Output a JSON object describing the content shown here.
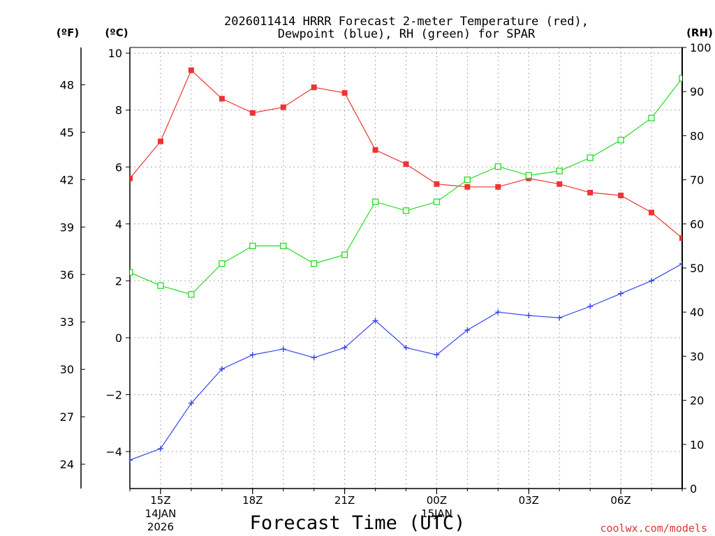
{
  "chart_data": {
    "type": "line",
    "title_line1": "2026011414 HRRR Forecast 2-meter Temperature (red),",
    "title_line2": "Dewpoint (blue), RH (green) for SPAR",
    "xlabel": "Forecast Time (UTC)",
    "watermark": "coolwx.com/models",
    "left_unit_f": "(ºF)",
    "left_unit_c": "(ºC)",
    "right_unit": "(RH)",
    "x_hours": [
      14,
      15,
      16,
      17,
      18,
      19,
      20,
      21,
      22,
      23,
      24,
      25,
      26,
      27,
      28,
      29,
      30,
      31,
      32
    ],
    "x_ticks": [
      {
        "hour": 15,
        "label": "15Z",
        "sub1": "14JAN",
        "sub2": "2026"
      },
      {
        "hour": 18,
        "label": "18Z",
        "sub1": "",
        "sub2": ""
      },
      {
        "hour": 21,
        "label": "21Z",
        "sub1": "",
        "sub2": ""
      },
      {
        "hour": 24,
        "label": "00Z",
        "sub1": "15JAN",
        "sub2": ""
      },
      {
        "hour": 27,
        "label": "03Z",
        "sub1": "",
        "sub2": ""
      },
      {
        "hour": 30,
        "label": "06Z",
        "sub1": "",
        "sub2": ""
      }
    ],
    "celsius_axis": {
      "min": -5.3,
      "max": 10.2,
      "ticks": [
        -4,
        -2,
        0,
        2,
        4,
        6,
        8,
        10
      ],
      "tick_labels": [
        "−4",
        "−2",
        "0",
        "2",
        "4",
        "6",
        "8",
        "10"
      ]
    },
    "fahrenheit_axis": {
      "ticks": [
        24,
        27,
        30,
        33,
        36,
        39,
        42,
        45,
        48
      ],
      "tick_labels": [
        "24",
        "27",
        "30",
        "33",
        "36",
        "39",
        "42",
        "45",
        "48"
      ]
    },
    "rh_axis": {
      "min": 0,
      "max": 100,
      "ticks": [
        0,
        10,
        20,
        30,
        40,
        50,
        60,
        70,
        80,
        90,
        100
      ],
      "tick_labels": [
        "0",
        "10",
        "20",
        "30",
        "40",
        "50",
        "60",
        "70",
        "80",
        "90",
        "100"
      ]
    },
    "series": [
      {
        "name": "Temperature",
        "unit": "C",
        "color": "#ee3333",
        "marker": "square-filled",
        "values": [
          5.6,
          6.9,
          9.4,
          8.4,
          7.9,
          8.1,
          8.8,
          8.6,
          6.6,
          6.1,
          5.4,
          5.3,
          5.3,
          5.6,
          5.4,
          5.1,
          5.0,
          4.4,
          3.5
        ]
      },
      {
        "name": "Dewpoint",
        "unit": "C",
        "color": "#3344ee",
        "marker": "plus",
        "values": [
          -4.3,
          -3.9,
          -2.3,
          -1.1,
          -0.6,
          -0.4,
          -0.7,
          -0.35,
          0.6,
          -0.35,
          -0.6,
          0.27,
          0.9,
          0.78,
          0.7,
          1.1,
          1.55,
          2.0,
          2.6
        ]
      },
      {
        "name": "RH",
        "unit": "%",
        "color": "#22dd22",
        "marker": "square-open",
        "values": [
          49,
          46,
          44,
          51,
          55,
          55,
          51,
          53,
          65,
          63,
          65,
          70,
          73,
          71,
          72,
          75,
          79,
          84,
          93
        ]
      }
    ]
  }
}
